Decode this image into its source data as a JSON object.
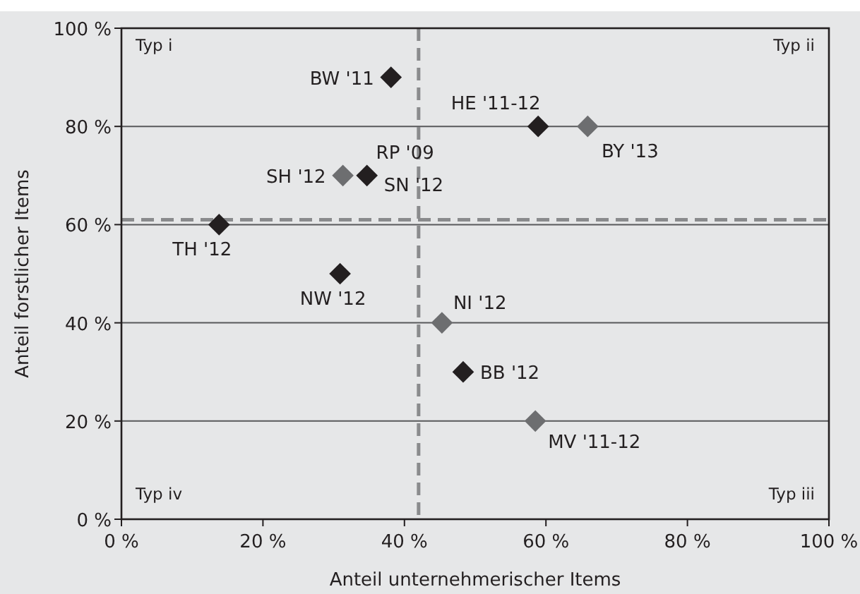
{
  "chart_data": {
    "type": "scatter",
    "xlabel": "Anteil unternehmerischer Items",
    "ylabel": "Anteil forstlicher Items",
    "marker": "diamond",
    "grid": "y",
    "xlim": [
      0,
      100
    ],
    "xticks": [
      {
        "value": 0,
        "label": "0 %"
      },
      {
        "value": 20,
        "label": "20 %"
      },
      {
        "value": 40,
        "label": "40 %"
      },
      {
        "value": 60,
        "label": "60 %"
      },
      {
        "value": 80,
        "label": "80 %"
      },
      {
        "value": 100,
        "label": "100 %"
      }
    ],
    "ylim": [
      0,
      100
    ],
    "yticks": [
      {
        "value": 0,
        "label": "0 %"
      },
      {
        "value": 20,
        "label": "20 %"
      },
      {
        "value": 40,
        "label": "40 %"
      },
      {
        "value": 60,
        "label": "60 %"
      },
      {
        "value": 80,
        "label": "80 %"
      },
      {
        "value": 100,
        "label": "100 %"
      }
    ],
    "series": [
      {
        "color": "#231f20",
        "x": [
          38.1,
          58.9,
          34.7,
          13.8,
          30.9,
          48.3
        ],
        "values": [
          90,
          80,
          70,
          60,
          50,
          30
        ]
      },
      {
        "color": "#6d6e70",
        "x": [
          65.9,
          31.3,
          45.3,
          58.5
        ],
        "values": [
          80,
          70,
          40,
          20
        ]
      }
    ],
    "ref_lines": [
      {
        "axis": "x",
        "value": 42,
        "color": "#8a8b8d",
        "line_style": "dashed"
      },
      {
        "axis": "y",
        "value": 61,
        "color": "#8a8b8d",
        "line_style": "dashed"
      }
    ],
    "annotations": [
      "Typ i",
      "Typ ii",
      "Typ iii",
      "Typ iv",
      {
        "text": "BW '11",
        "x": 38.1,
        "y": 90
      },
      {
        "text": "HE '11-12",
        "x": 58.9,
        "y": 80
      },
      {
        "text": "BY '13",
        "x": 65.9,
        "y": 80
      },
      {
        "text": "SH '12",
        "x": 31.3,
        "y": 70
      },
      {
        "text": "RP '09",
        "x": 34.7,
        "y": 70
      },
      {
        "text": "SN '12",
        "x": 34.7,
        "y": 70
      },
      {
        "text": "TH '12",
        "x": 13.8,
        "y": 60
      },
      {
        "text": "NW '12",
        "x": 30.9,
        "y": 50
      },
      {
        "text": "NI '12",
        "x": 45.3,
        "y": 40
      },
      {
        "text": "BB '12",
        "x": 48.3,
        "y": 30
      },
      {
        "text": "MV '11-12",
        "x": 58.5,
        "y": 20
      }
    ]
  }
}
